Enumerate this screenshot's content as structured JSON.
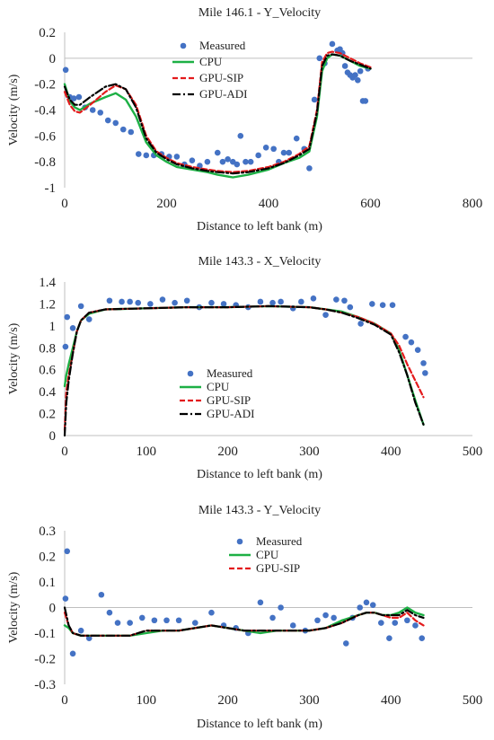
{
  "colors": {
    "measured": "#4472C4",
    "cpu": "#1DB045",
    "gpu_sip": "#E31A1C",
    "gpu_adi": "#000000"
  },
  "chart_data": [
    {
      "type": "scatter",
      "title": "Mile 146.1 - Y_Velocity",
      "xlabel": "Distance to left bank (m)",
      "ylabel": "Velocity (m/s)",
      "xlim": [
        0,
        800
      ],
      "ylim": [
        -1,
        0.2
      ],
      "xticks": [
        0,
        200,
        400,
        600,
        800
      ],
      "yticks": [
        0.2,
        0,
        -0.2,
        -0.4,
        -0.6,
        -0.8,
        -1
      ],
      "xtick_labels": [
        "0",
        "200",
        "400",
        "600",
        "800"
      ],
      "ytick_labels": [
        "0.2",
        "0",
        "-0.2",
        "-0.4",
        "-0.6",
        "-0.8",
        "-1"
      ],
      "grid": false,
      "legend_position": "top-center",
      "series": [
        {
          "name": "Measured",
          "kind": "markers",
          "x": [
            2,
            10,
            18,
            28,
            40,
            55,
            70,
            85,
            100,
            115,
            130,
            145,
            160,
            175,
            190,
            205,
            220,
            235,
            250,
            265,
            280,
            300,
            310,
            320,
            330,
            338,
            345,
            355,
            365,
            380,
            395,
            410,
            420,
            430,
            440,
            455,
            470,
            480,
            490,
            500,
            510,
            525,
            535,
            540,
            545,
            550,
            555,
            560,
            565,
            570,
            575,
            580,
            585,
            590,
            595
          ],
          "y": [
            -0.09,
            -0.3,
            -0.31,
            -0.3,
            -0.38,
            -0.4,
            -0.42,
            -0.48,
            -0.5,
            -0.55,
            -0.57,
            -0.74,
            -0.75,
            -0.75,
            -0.74,
            -0.76,
            -0.76,
            -0.82,
            -0.79,
            -0.83,
            -0.8,
            -0.73,
            -0.8,
            -0.78,
            -0.8,
            -0.82,
            -0.6,
            -0.8,
            -0.8,
            -0.75,
            -0.69,
            -0.7,
            -0.8,
            -0.73,
            -0.73,
            -0.62,
            -0.7,
            -0.85,
            -0.32,
            0.0,
            -0.04,
            0.11,
            0.06,
            0.07,
            0.04,
            -0.06,
            -0.11,
            -0.13,
            -0.15,
            -0.13,
            -0.17,
            -0.1,
            -0.33,
            -0.33,
            -0.08
          ]
        },
        {
          "name": "CPU",
          "kind": "line",
          "x": [
            0,
            10,
            20,
            30,
            50,
            80,
            100,
            120,
            140,
            160,
            180,
            200,
            220,
            250,
            280,
            300,
            330,
            360,
            400,
            430,
            460,
            480,
            495,
            505,
            515,
            525,
            540,
            560,
            580,
            600
          ],
          "y": [
            -0.2,
            -0.33,
            -0.38,
            -0.4,
            -0.35,
            -0.3,
            -0.27,
            -0.32,
            -0.45,
            -0.65,
            -0.75,
            -0.8,
            -0.84,
            -0.86,
            -0.88,
            -0.9,
            -0.92,
            -0.9,
            -0.86,
            -0.81,
            -0.77,
            -0.72,
            -0.45,
            -0.1,
            0.0,
            0.03,
            0.02,
            -0.02,
            -0.06,
            -0.08
          ]
        },
        {
          "name": "GPU-SIP",
          "kind": "line",
          "x": [
            0,
            10,
            20,
            30,
            50,
            80,
            100,
            120,
            140,
            160,
            180,
            200,
            220,
            250,
            280,
            300,
            330,
            360,
            400,
            430,
            460,
            480,
            495,
            505,
            515,
            525,
            540,
            560,
            580,
            600
          ],
          "y": [
            -0.26,
            -0.36,
            -0.41,
            -0.42,
            -0.36,
            -0.26,
            -0.21,
            -0.24,
            -0.36,
            -0.6,
            -0.72,
            -0.77,
            -0.81,
            -0.84,
            -0.86,
            -0.87,
            -0.88,
            -0.87,
            -0.84,
            -0.8,
            -0.74,
            -0.68,
            -0.4,
            -0.03,
            0.04,
            0.05,
            0.04,
            0.0,
            -0.04,
            -0.07
          ]
        },
        {
          "name": "GPU-ADI",
          "kind": "line",
          "x": [
            0,
            10,
            20,
            30,
            50,
            80,
            100,
            120,
            140,
            160,
            180,
            200,
            220,
            250,
            280,
            300,
            330,
            360,
            400,
            430,
            460,
            480,
            495,
            505,
            515,
            525,
            540,
            560,
            580,
            600
          ],
          "y": [
            -0.22,
            -0.32,
            -0.36,
            -0.36,
            -0.3,
            -0.22,
            -0.2,
            -0.24,
            -0.38,
            -0.62,
            -0.73,
            -0.78,
            -0.82,
            -0.85,
            -0.87,
            -0.88,
            -0.89,
            -0.88,
            -0.85,
            -0.81,
            -0.75,
            -0.7,
            -0.42,
            -0.06,
            0.02,
            0.03,
            0.02,
            -0.02,
            -0.05,
            -0.08
          ]
        }
      ]
    },
    {
      "type": "scatter",
      "title": "Mile 143.3 - X_Velocity",
      "xlabel": "Distance to left bank (m)",
      "ylabel": "Velocity (m/s)",
      "xlim": [
        0,
        500
      ],
      "ylim": [
        0,
        1.4
      ],
      "xticks": [
        0,
        100,
        200,
        300,
        400,
        500
      ],
      "yticks": [
        1.4,
        1.2,
        1,
        0.8,
        0.6,
        0.4,
        0.2,
        0
      ],
      "xtick_labels": [
        "0",
        "100",
        "200",
        "300",
        "400",
        "500"
      ],
      "ytick_labels": [
        "1.4",
        "1.2",
        "1",
        "0.8",
        "0.6",
        "0.4",
        "0.2",
        "0"
      ],
      "grid": false,
      "legend_position": "lower-left",
      "series": [
        {
          "name": "Measured",
          "kind": "markers",
          "x": [
            1,
            3,
            10,
            20,
            30,
            55,
            70,
            80,
            90,
            105,
            120,
            135,
            150,
            165,
            180,
            195,
            210,
            225,
            240,
            255,
            265,
            280,
            290,
            305,
            320,
            333,
            343,
            350,
            363,
            377,
            390,
            402,
            418,
            425,
            433,
            440,
            442
          ],
          "y": [
            0.81,
            1.08,
            0.98,
            1.18,
            1.06,
            1.23,
            1.22,
            1.22,
            1.21,
            1.2,
            1.24,
            1.21,
            1.23,
            1.17,
            1.21,
            1.2,
            1.19,
            1.17,
            1.22,
            1.21,
            1.22,
            1.16,
            1.22,
            1.25,
            1.1,
            1.24,
            1.23,
            1.17,
            1.02,
            1.2,
            1.19,
            1.19,
            0.9,
            0.85,
            0.78,
            0.66,
            0.57
          ]
        },
        {
          "name": "CPU",
          "kind": "line",
          "x": [
            0,
            2,
            5,
            10,
            15,
            20,
            30,
            50,
            100,
            150,
            200,
            250,
            300,
            320,
            340,
            360,
            380,
            400,
            410,
            420,
            430,
            440
          ],
          "y": [
            0.45,
            0.55,
            0.65,
            0.8,
            0.95,
            1.05,
            1.11,
            1.15,
            1.16,
            1.17,
            1.17,
            1.18,
            1.17,
            1.15,
            1.13,
            1.08,
            1.02,
            0.93,
            0.78,
            0.55,
            0.32,
            0.1
          ]
        },
        {
          "name": "GPU-SIP",
          "kind": "line",
          "x": [
            0,
            2,
            5,
            10,
            15,
            20,
            30,
            50,
            100,
            150,
            200,
            250,
            300,
            320,
            340,
            360,
            380,
            400,
            410,
            420,
            430,
            440
          ],
          "y": [
            0.05,
            0.4,
            0.55,
            0.75,
            0.95,
            1.05,
            1.12,
            1.15,
            1.16,
            1.17,
            1.17,
            1.18,
            1.17,
            1.15,
            1.12,
            1.08,
            1.02,
            0.93,
            0.82,
            0.65,
            0.5,
            0.35
          ]
        },
        {
          "name": "GPU-ADI",
          "kind": "line",
          "x": [
            0,
            2,
            5,
            10,
            15,
            20,
            30,
            50,
            100,
            150,
            200,
            250,
            300,
            320,
            340,
            360,
            380,
            400,
            410,
            420,
            430,
            440
          ],
          "y": [
            0.0,
            0.3,
            0.5,
            0.75,
            0.95,
            1.05,
            1.12,
            1.15,
            1.16,
            1.17,
            1.17,
            1.18,
            1.17,
            1.15,
            1.12,
            1.07,
            1.01,
            0.92,
            0.76,
            0.55,
            0.3,
            0.1
          ]
        }
      ]
    },
    {
      "type": "scatter",
      "title": "Mile 143.3 - Y_Velocity",
      "xlabel": "Distance to left bank (m)",
      "ylabel": "Velocity (m/s)",
      "xlim": [
        0,
        500
      ],
      "ylim": [
        -0.3,
        0.3
      ],
      "xticks": [
        0,
        100,
        200,
        300,
        400,
        500
      ],
      "yticks": [
        0.3,
        0.2,
        0.1,
        0,
        -0.1,
        -0.2,
        -0.3
      ],
      "xtick_labels": [
        "0",
        "100",
        "200",
        "300",
        "400",
        "500"
      ],
      "ytick_labels": [
        "0.3",
        "0.2",
        "0.1",
        "0",
        "-0.1",
        "-0.2",
        "-0.3"
      ],
      "grid": false,
      "legend_position": "top-center",
      "series": [
        {
          "name": "Measured",
          "kind": "markers",
          "x": [
            1,
            3,
            10,
            20,
            30,
            45,
            55,
            65,
            80,
            95,
            110,
            125,
            140,
            160,
            180,
            195,
            210,
            225,
            240,
            255,
            265,
            280,
            295,
            310,
            320,
            330,
            345,
            353,
            362,
            370,
            378,
            388,
            398,
            405,
            420,
            430,
            438
          ],
          "y": [
            0.035,
            0.22,
            -0.18,
            -0.09,
            -0.12,
            0.05,
            -0.02,
            -0.06,
            -0.06,
            -0.04,
            -0.05,
            -0.05,
            -0.05,
            -0.06,
            -0.02,
            -0.07,
            -0.08,
            -0.1,
            0.02,
            -0.04,
            0.0,
            -0.07,
            -0.09,
            -0.05,
            -0.03,
            -0.04,
            -0.14,
            -0.04,
            0.0,
            0.02,
            0.01,
            -0.06,
            -0.12,
            -0.06,
            -0.05,
            -0.07,
            -0.12
          ]
        },
        {
          "name": "CPU",
          "kind": "line",
          "x": [
            0,
            5,
            10,
            20,
            40,
            60,
            80,
            100,
            120,
            140,
            160,
            180,
            200,
            220,
            240,
            260,
            280,
            300,
            320,
            340,
            360,
            370,
            380,
            390,
            400,
            410,
            420,
            430,
            440
          ],
          "y": [
            -0.07,
            -0.08,
            -0.1,
            -0.11,
            -0.11,
            -0.11,
            -0.11,
            -0.1,
            -0.09,
            -0.09,
            -0.08,
            -0.07,
            -0.08,
            -0.09,
            -0.1,
            -0.09,
            -0.09,
            -0.09,
            -0.08,
            -0.05,
            -0.03,
            -0.02,
            -0.02,
            -0.03,
            -0.03,
            -0.02,
            0.0,
            -0.02,
            -0.03
          ]
        },
        {
          "name": "GPU-SIP",
          "kind": "line",
          "x": [
            0,
            5,
            10,
            20,
            40,
            60,
            80,
            100,
            120,
            140,
            160,
            180,
            200,
            220,
            240,
            260,
            280,
            300,
            320,
            340,
            360,
            370,
            380,
            390,
            400,
            410,
            420,
            430,
            440
          ],
          "y": [
            -0.02,
            -0.07,
            -0.1,
            -0.11,
            -0.11,
            -0.11,
            -0.11,
            -0.09,
            -0.09,
            -0.09,
            -0.08,
            -0.07,
            -0.08,
            -0.09,
            -0.09,
            -0.09,
            -0.09,
            -0.09,
            -0.08,
            -0.06,
            -0.03,
            -0.02,
            -0.02,
            -0.03,
            -0.04,
            -0.04,
            -0.02,
            -0.05,
            -0.07
          ]
        },
        {
          "kind": "line",
          "x": [
            0,
            5,
            10,
            20,
            40,
            60,
            80,
            100,
            120,
            140,
            160,
            180,
            200,
            220,
            240,
            260,
            280,
            300,
            320,
            340,
            360,
            370,
            380,
            390,
            400,
            410,
            420,
            430,
            440
          ],
          "y": [
            0.0,
            -0.07,
            -0.1,
            -0.11,
            -0.11,
            -0.11,
            -0.11,
            -0.09,
            -0.09,
            -0.09,
            -0.08,
            -0.07,
            -0.08,
            -0.09,
            -0.09,
            -0.09,
            -0.09,
            -0.09,
            -0.08,
            -0.06,
            -0.03,
            -0.02,
            -0.02,
            -0.03,
            -0.03,
            -0.03,
            -0.01,
            -0.03,
            -0.04
          ]
        }
      ]
    }
  ]
}
